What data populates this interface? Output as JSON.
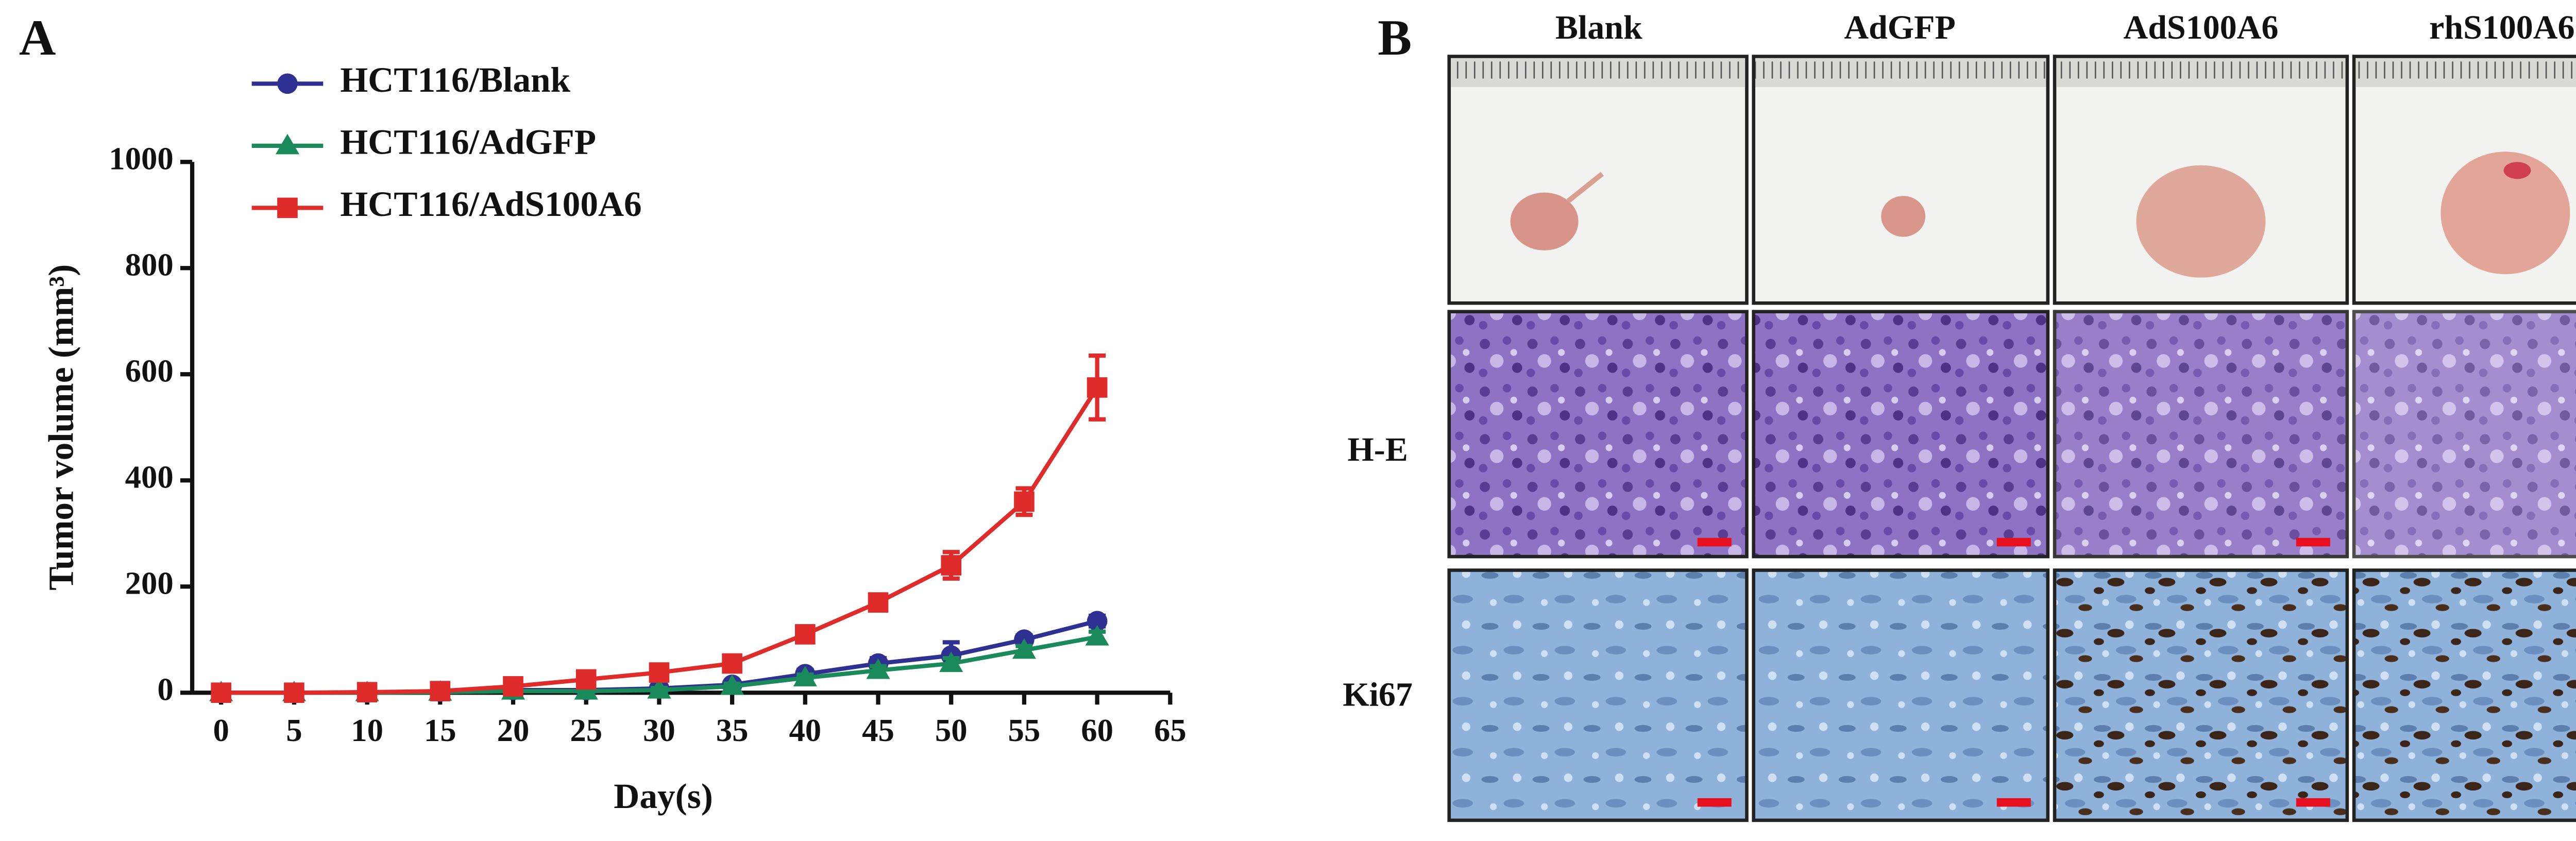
{
  "chart_data": {
    "type": "line",
    "x_label": "Day(s)",
    "y_label": "Tumor volume (mm³)",
    "x": [
      0,
      5,
      10,
      15,
      20,
      25,
      30,
      35,
      40,
      45,
      50,
      55,
      60
    ],
    "series": [
      {
        "name": "HCT116/Blank",
        "color": "#2e3192",
        "marker": "circle",
        "values": [
          0,
          0,
          0,
          2,
          5,
          5,
          8,
          15,
          35,
          55,
          70,
          100,
          135
        ],
        "errors": [
          2,
          2,
          2,
          2,
          3,
          3,
          4,
          5,
          8,
          10,
          25,
          8,
          10
        ]
      },
      {
        "name": "HCT116/AdGFP",
        "color": "#1a8a5a",
        "marker": "triangle",
        "values": [
          0,
          0,
          0,
          1,
          3,
          3,
          5,
          12,
          28,
          42,
          55,
          80,
          105
        ],
        "errors": [
          2,
          2,
          2,
          2,
          3,
          3,
          4,
          5,
          6,
          8,
          10,
          8,
          10
        ]
      },
      {
        "name": "HCT116/AdS100A6",
        "color": "#e02b2b",
        "marker": "square",
        "values": [
          0,
          0,
          1,
          3,
          12,
          25,
          38,
          55,
          110,
          170,
          240,
          360,
          575
        ],
        "errors": [
          2,
          2,
          2,
          3,
          5,
          6,
          8,
          10,
          12,
          12,
          25,
          25,
          60
        ]
      }
    ],
    "xlim": [
      0,
      65
    ],
    "xticks": [
      0,
      5,
      10,
      15,
      20,
      25,
      30,
      35,
      40,
      45,
      50,
      55,
      60,
      65
    ],
    "ylim": [
      0,
      1000
    ],
    "yticks": [
      0,
      200,
      400,
      600,
      800,
      1000
    ],
    "grid": false,
    "legend": "top-left"
  },
  "panel_labels": [
    "A",
    "B"
  ],
  "panel_b": {
    "columns": [
      "Blank",
      "AdGFP",
      "AdS100A6",
      "rhS100A6"
    ],
    "rows": [
      "H-E",
      "Ki67"
    ]
  }
}
